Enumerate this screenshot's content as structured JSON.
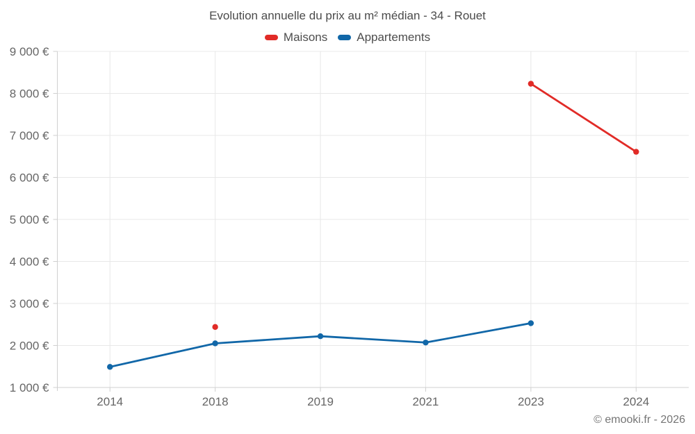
{
  "chart_data": {
    "type": "line",
    "title": "Evolution annuelle du prix au m² médian - 34 - Rouet",
    "categories": [
      "2014",
      "2018",
      "2019",
      "2021",
      "2023",
      "2024"
    ],
    "series": [
      {
        "name": "Maisons",
        "color": "#e12b27",
        "values": [
          null,
          2440,
          null,
          null,
          8230,
          6610
        ]
      },
      {
        "name": "Appartements",
        "color": "#1167a8",
        "values": [
          1490,
          2050,
          2220,
          2070,
          2530,
          null
        ]
      }
    ],
    "ylim": [
      1000,
      9000
    ],
    "ytick_step": 1000,
    "ytick_labels": [
      "1 000 €",
      "2 000 €",
      "3 000 €",
      "4 000 €",
      "5 000 €",
      "6 000 €",
      "7 000 €",
      "8 000 €",
      "9 000 €"
    ],
    "xlabel": "",
    "ylabel": "",
    "grid": true,
    "legend_position": "top",
    "credit": "© emooki.fr - 2026"
  }
}
